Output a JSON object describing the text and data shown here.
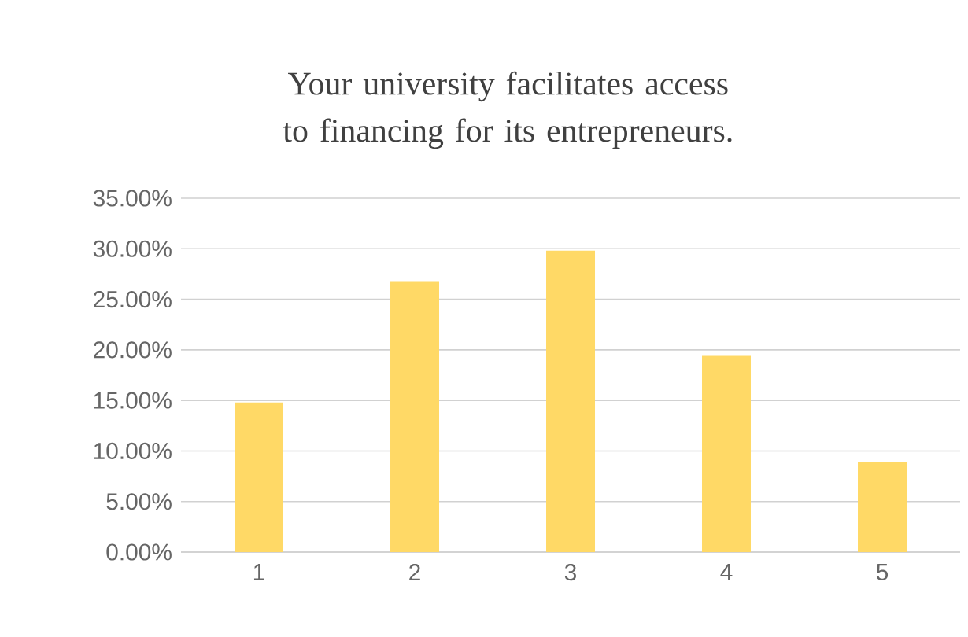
{
  "chart_data": {
    "type": "bar",
    "title": "Your university facilitates access to financing for its entrepreneurs.",
    "categories": [
      "1",
      "2",
      "3",
      "4",
      "5"
    ],
    "values": [
      14.8,
      26.8,
      29.8,
      19.4,
      8.9
    ],
    "color": "#ffd966",
    "ylim": [
      0,
      35
    ],
    "yticks": [
      {
        "value": 0,
        "label": "0.00%"
      },
      {
        "value": 5,
        "label": "5.00%"
      },
      {
        "value": 10,
        "label": "10.00%"
      },
      {
        "value": 15,
        "label": "15.00%"
      },
      {
        "value": 20,
        "label": "20.00%"
      },
      {
        "value": 25,
        "label": "25.00%"
      },
      {
        "value": 30,
        "label": "30.00%"
      },
      {
        "value": 35,
        "label": "35.00%"
      }
    ],
    "grid": "y"
  }
}
